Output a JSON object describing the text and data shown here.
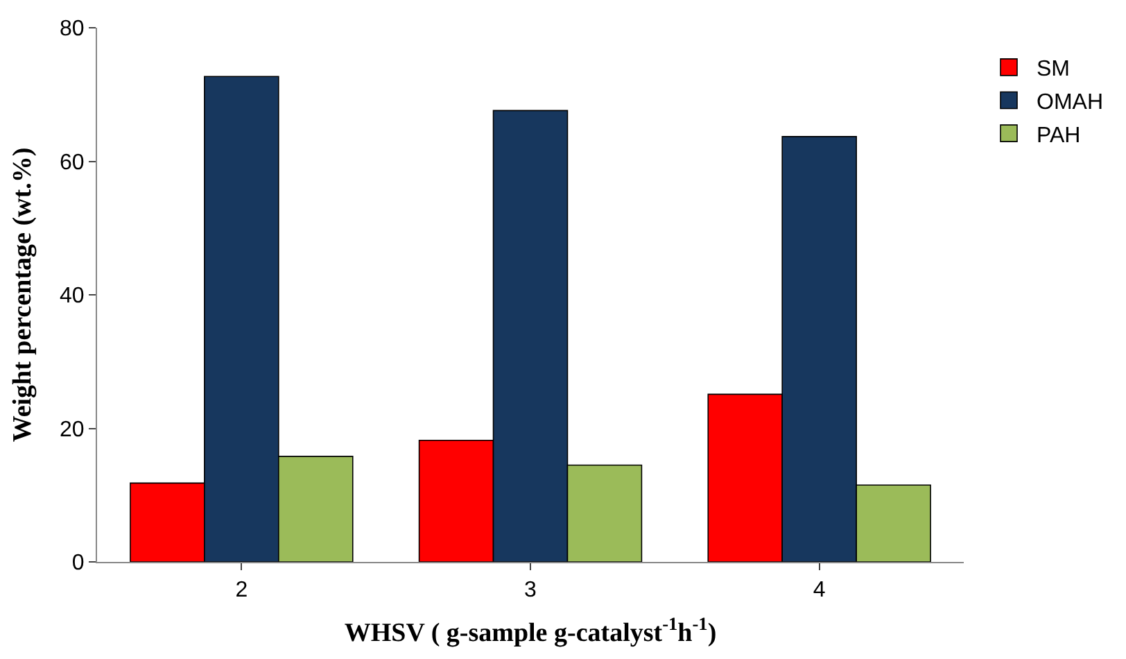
{
  "chart_data": {
    "type": "bar",
    "xlabel": "WHSV ( g-sample g-catalyst$^{-1}$h$^{-1}$)",
    "ylabel": "Weight percentage (wt.%)",
    "categories": [
      "2",
      "3",
      "4"
    ],
    "series": [
      {
        "name": "SM",
        "color": "#ff0000",
        "values": [
          11.8,
          18.2,
          25.1
        ]
      },
      {
        "name": "OMAH",
        "color": "#17375e",
        "values": [
          72.7,
          67.6,
          63.7
        ]
      },
      {
        "name": "PAH",
        "color": "#9bbb59",
        "values": [
          15.8,
          14.5,
          11.5
        ]
      }
    ],
    "ylim": [
      0,
      80
    ],
    "yticks": [
      0,
      20,
      40,
      60,
      80
    ],
    "legend": "right"
  }
}
